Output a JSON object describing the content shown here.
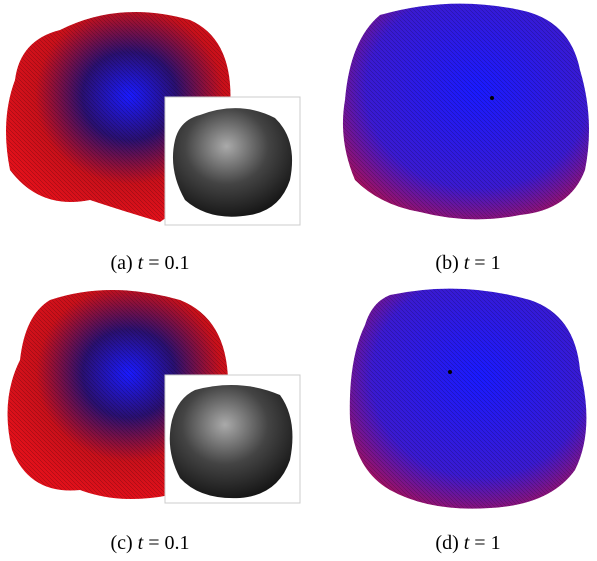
{
  "panels": [
    {
      "label": "(a)",
      "var": "t",
      "rest": "= 0.1"
    },
    {
      "label": "(b)",
      "var": "t",
      "rest": "= 1"
    },
    {
      "label": "(c)",
      "var": "t",
      "rest": "= 0.1"
    },
    {
      "label": "(d)",
      "var": "t",
      "rest": "= 1"
    }
  ]
}
